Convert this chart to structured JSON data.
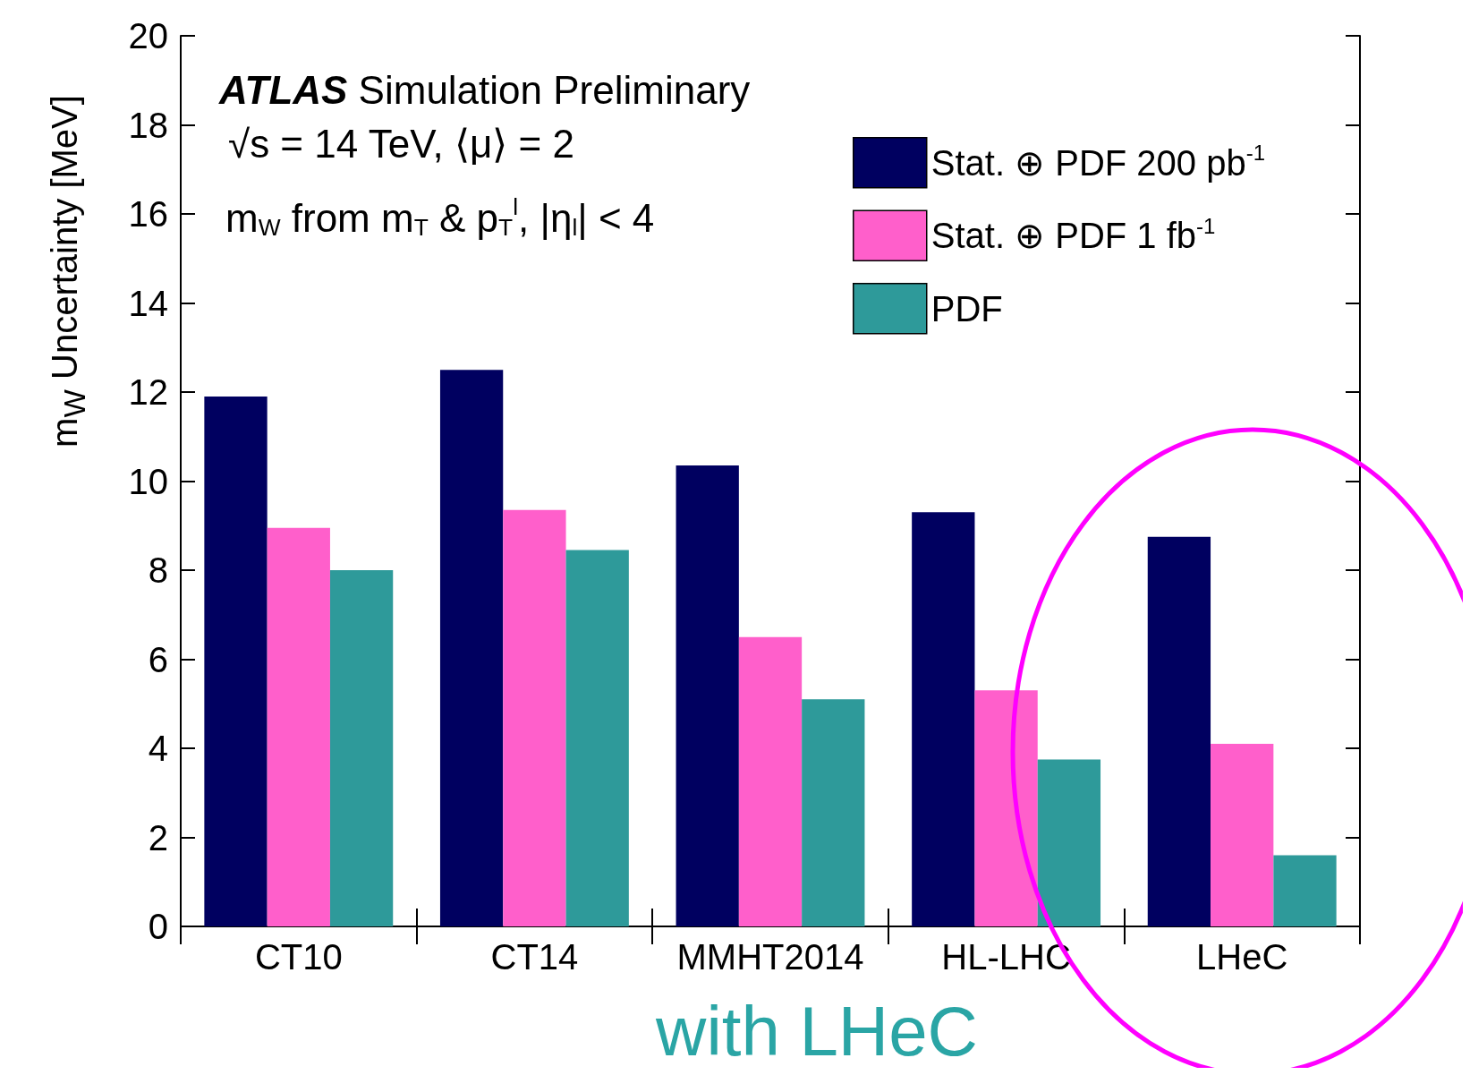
{
  "chart_data": {
    "type": "bar",
    "categories": [
      "CT10",
      "CT14",
      "MMHT2014",
      "HL-LHC",
      "LHeC"
    ],
    "series": [
      {
        "name": "Stat. ⊕ PDF 200 pb$^{-1}$",
        "color": "#000060",
        "values": [
          11.9,
          12.5,
          10.35,
          9.3,
          8.75
        ]
      },
      {
        "name": "Stat. ⊕ PDF 1 fb$^{-1}$",
        "color": "#ff5fcb",
        "values": [
          8.95,
          9.35,
          6.5,
          5.3,
          4.1
        ]
      },
      {
        "name": "PDF",
        "color": "#2e9a9a",
        "values": [
          8.0,
          8.45,
          5.1,
          3.75,
          1.6
        ]
      }
    ],
    "ylabel": "m$_{W}$ Uncertainty [MeV]",
    "ylim": [
      0,
      20
    ],
    "yticks": [
      0,
      2,
      4,
      6,
      8,
      10,
      12,
      14,
      16,
      18,
      20
    ],
    "legend": "top right",
    "grid": false,
    "annotations": [
      "ATLAS Simulation Preliminary",
      "√s = 14 TeV, ⟨μ⟩ = 2",
      "m$_{W}$ from m$_{T}$ & p$_{T}$$^{l}$, |η$_{l}$| < 4",
      "with LHeC"
    ]
  }
}
